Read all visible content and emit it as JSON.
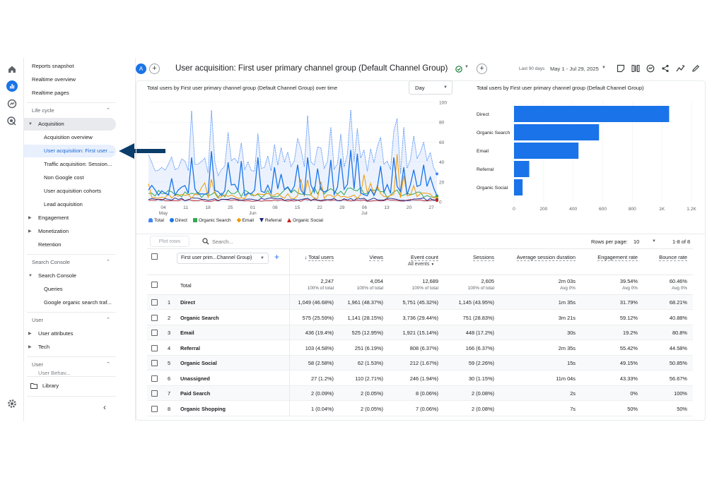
{
  "rail": {
    "icons": [
      "home-icon",
      "reports-icon",
      "explore-icon",
      "advertising-icon"
    ],
    "settings": "gear-icon"
  },
  "sidebar": {
    "top": [
      "Reports snapshot",
      "Realtime overview",
      "Realtime pages"
    ],
    "lifecycle": "Life cycle",
    "acquisition": "Acquisition",
    "acq_items": [
      "Acquisition overview",
      "User acquisition: First user ...",
      "Traffic acquisition: Session...",
      "Non Google cost",
      "User acquisition cohorts",
      "Lead acquisition"
    ],
    "engagement": "Engagement",
    "monetization": "Monetization",
    "retention": "Retention",
    "sc_section": "Search Console",
    "sc_group": "Search Console",
    "sc_items": [
      "Queries",
      "Google organic search traf..."
    ],
    "user_section": "User",
    "user_items": [
      "User attributes",
      "Tech"
    ],
    "user_section2": "User",
    "user_partial": "User Behav...",
    "library": "Library"
  },
  "header": {
    "avatar": "A",
    "title": "User acquisition: First user primary channel group (Default Channel Group)",
    "date_label": "Last 90 days",
    "date_range": "May 1 - Jul 29, 2025"
  },
  "line_chart": {
    "title": "Total users by First user primary channel group (Default Channel Group) over time",
    "granularity": "Day",
    "y_ticks": [
      "100",
      "80",
      "60",
      "40",
      "20",
      "0"
    ],
    "x_ticks": [
      {
        "d": "04",
        "m": "May"
      },
      {
        "d": "11",
        "m": ""
      },
      {
        "d": "18",
        "m": ""
      },
      {
        "d": "25",
        "m": ""
      },
      {
        "d": "01",
        "m": "Jun"
      },
      {
        "d": "08",
        "m": ""
      },
      {
        "d": "15",
        "m": ""
      },
      {
        "d": "22",
        "m": ""
      },
      {
        "d": "29",
        "m": ""
      },
      {
        "d": "06",
        "m": "Jul"
      },
      {
        "d": "13",
        "m": ""
      },
      {
        "d": "20",
        "m": ""
      },
      {
        "d": "27",
        "m": ""
      }
    ],
    "legend": [
      "Total",
      "Direct",
      "Organic Search",
      "Email",
      "Referral",
      "Organic Social"
    ]
  },
  "chart_data": [
    {
      "type": "line",
      "title": "Total users by First user primary channel group (Default Channel Group) over time",
      "ylim": [
        0,
        100
      ],
      "series": [
        {
          "name": "Total",
          "color": "#4285f4"
        },
        {
          "name": "Direct",
          "color": "#1a73e8"
        },
        {
          "name": "Organic Search",
          "color": "#34a853"
        },
        {
          "name": "Email",
          "color": "#f29900"
        },
        {
          "name": "Referral",
          "color": "#1a237e"
        },
        {
          "name": "Organic Social",
          "color": "#c5221f"
        }
      ]
    },
    {
      "type": "bar",
      "title": "Total users by First user primary channel group (Default Channel Group)",
      "categories": [
        "Direct",
        "Organic Search",
        "Email",
        "Referral",
        "Organic Social"
      ],
      "values": [
        1049,
        575,
        436,
        103,
        58
      ],
      "xlim": [
        0,
        1200
      ],
      "x_ticks": [
        "0",
        "200",
        "400",
        "600",
        "800",
        "1K",
        "1.2K"
      ]
    }
  ],
  "table": {
    "search_placeholder": "Search...",
    "plot_rows": "Plot rows",
    "rows_per_page_label": "Rows per page:",
    "rows_per_page": "10",
    "pagination": "1-8 of 8",
    "dimension": "First user prim...Channel Group)",
    "headers": [
      "Total users",
      "Views",
      "Event count",
      "Sessions",
      "Average session duration",
      "Engagement rate",
      "Bounce rate"
    ],
    "event_filter": "All events",
    "total": {
      "label": "Total",
      "values": [
        "2,247",
        "4,054",
        "12,689",
        "2,605",
        "2m 03s",
        "39.54%",
        "60.46%"
      ],
      "subs": [
        "100% of total",
        "100% of total",
        "100% of total",
        "100% of total",
        "Avg 0%",
        "Avg 0%",
        "Avg 0%"
      ]
    },
    "rows": [
      [
        "1",
        "Direct",
        "1,049 (46.68%)",
        "1,961 (48.37%)",
        "5,751 (45.32%)",
        "1,145 (43.95%)",
        "1m 35s",
        "31.79%",
        "68.21%"
      ],
      [
        "2",
        "Organic Search",
        "575 (25.59%)",
        "1,141 (28.15%)",
        "3,736 (29.44%)",
        "751 (28.83%)",
        "3m 21s",
        "59.12%",
        "40.88%"
      ],
      [
        "3",
        "Email",
        "436 (19.4%)",
        "525 (12.95%)",
        "1,921 (15.14%)",
        "448 (17.2%)",
        "30s",
        "19.2%",
        "80.8%"
      ],
      [
        "4",
        "Referral",
        "103 (4.58%)",
        "251 (6.19%)",
        "808 (6.37%)",
        "166 (6.37%)",
        "2m 35s",
        "55.42%",
        "44.58%"
      ],
      [
        "5",
        "Organic Social",
        "58 (2.58%)",
        "62 (1.53%)",
        "212 (1.67%)",
        "59 (2.26%)",
        "15s",
        "49.15%",
        "50.85%"
      ],
      [
        "6",
        "Unassigned",
        "27 (1.2%)",
        "110 (2.71%)",
        "246 (1.94%)",
        "30 (1.15%)",
        "11m 04s",
        "43.33%",
        "56.67%"
      ],
      [
        "7",
        "Paid Search",
        "2 (0.09%)",
        "2 (0.05%)",
        "8 (0.06%)",
        "2 (0.08%)",
        "2s",
        "0%",
        "100%"
      ],
      [
        "8",
        "Organic Shopping",
        "1 (0.04%)",
        "2 (0.05%)",
        "7 (0.06%)",
        "2 (0.08%)",
        "7s",
        "50%",
        "50%"
      ]
    ]
  }
}
